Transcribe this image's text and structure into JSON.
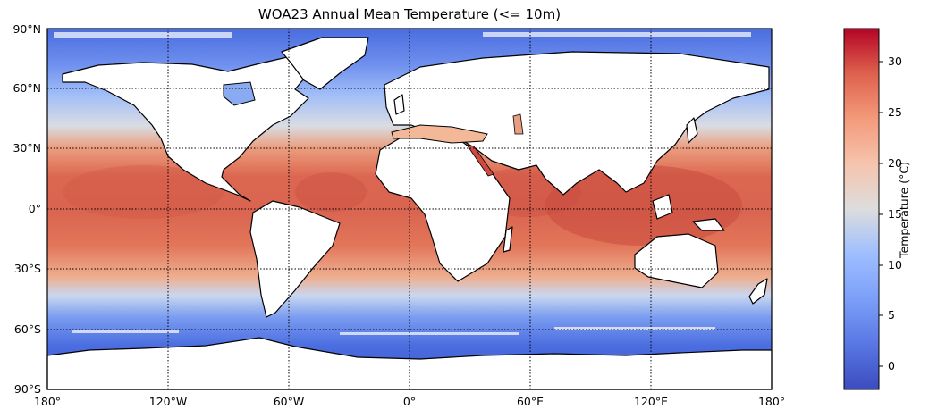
{
  "map": {
    "title": "WOA23 Annual Mean Temperature (<= 10m)",
    "lat_labels": [
      "90°N",
      "60°N",
      "30°N",
      "0°",
      "30°S",
      "60°S",
      "90°S"
    ],
    "lon_labels": [
      "180°",
      "120°W",
      "60°W",
      "0°",
      "60°E",
      "120°E",
      "180°"
    ],
    "colorbar": {
      "label": "Temperature (°C)",
      "ticks": [
        "30",
        "25",
        "20",
        "15",
        "10",
        "5",
        "0"
      ],
      "range": [
        -2.3,
        33.2
      ],
      "colormap": "coolwarm",
      "colors": {
        "cold": "#3b4cc0",
        "neutral": "#dddddd",
        "warm": "#b40426"
      }
    },
    "colors": {
      "land": "#ffffff",
      "coast": "#000000",
      "grid": "#000000"
    }
  }
}
